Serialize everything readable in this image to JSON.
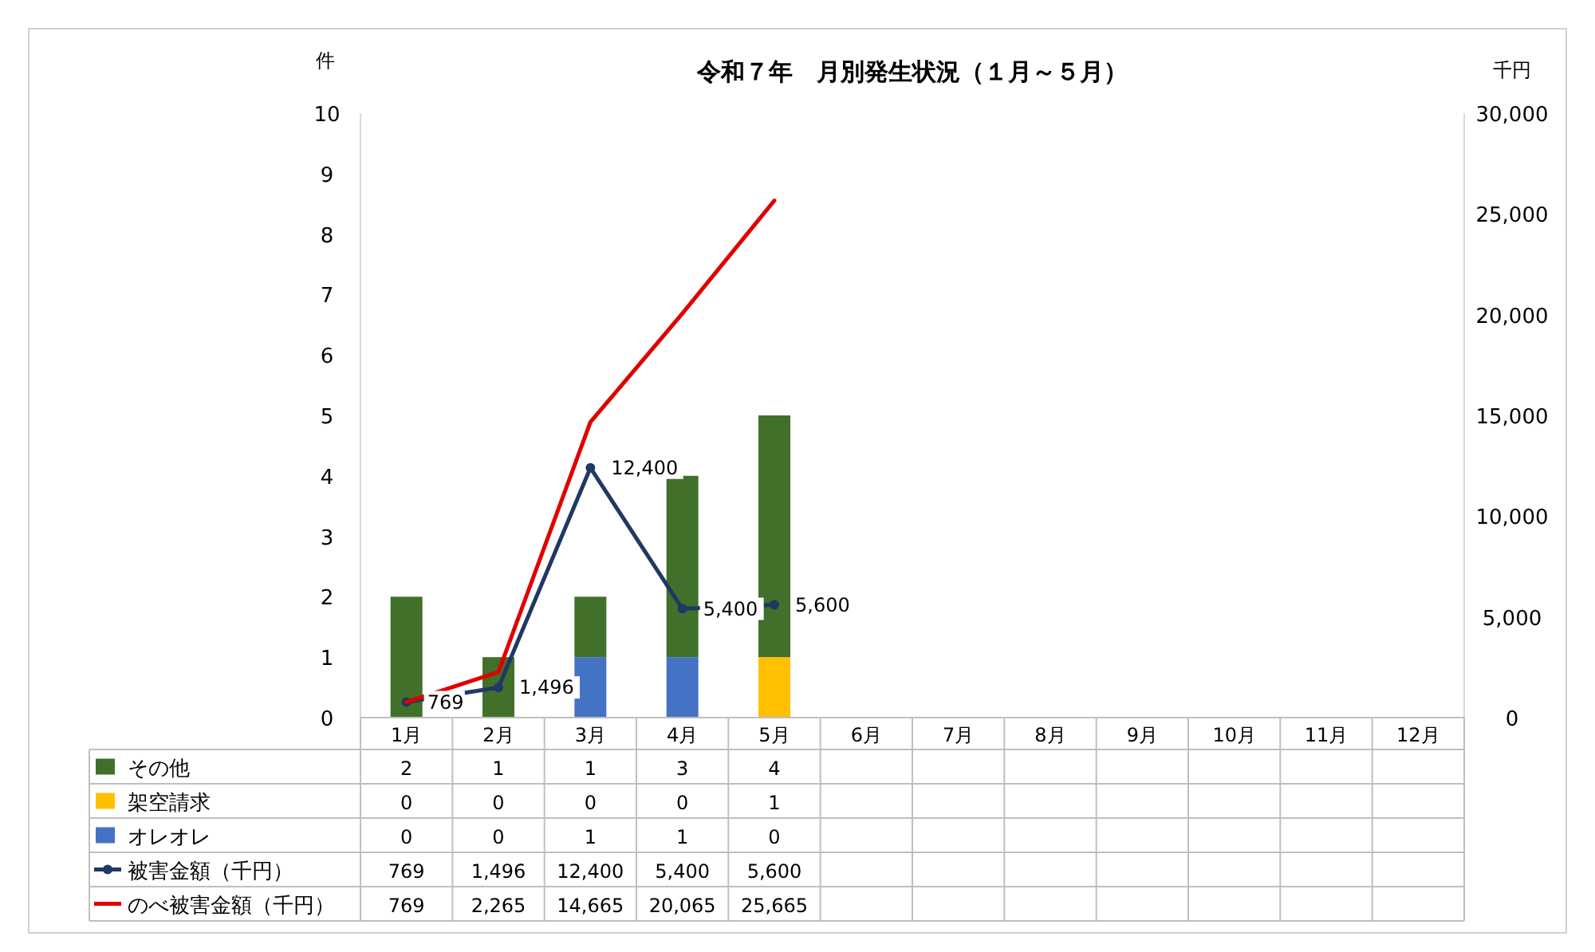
{
  "chart_data": {
    "type": "bar",
    "title": "令和７年　月別発生状況（１月～５月）",
    "ylabel": "件",
    "y2label": "千円",
    "categories": [
      "1月",
      "2月",
      "3月",
      "4月",
      "5月",
      "6月",
      "7月",
      "8月",
      "9月",
      "10月",
      "11月",
      "12月"
    ],
    "stacked": true,
    "legend": "bottom left",
    "grid": false,
    "ylim": [
      0,
      10
    ],
    "yticks": [
      0,
      1,
      2,
      3,
      4,
      5,
      6,
      7,
      8,
      9,
      10
    ],
    "y2lim": [
      0,
      30000
    ],
    "y2ticks": [
      0,
      {
        "value": 5000,
        "label": "5,000"
      },
      {
        "value": 10000,
        "label": "10,000"
      },
      {
        "value": 15000,
        "label": "15,000"
      },
      {
        "value": 20000,
        "label": "20,000"
      },
      {
        "value": 25000,
        "label": "25,000"
      },
      {
        "value": 30000,
        "label": "30,000"
      }
    ],
    "series": [
      {
        "name": "オレオレ",
        "color": "#4472c4",
        "values": [
          0,
          0,
          1,
          1,
          0,
          null,
          null,
          null,
          null,
          null,
          null,
          null
        ],
        "value_labels": [
          "0",
          "0",
          "1",
          "1",
          "0",
          null,
          null,
          null,
          null,
          null,
          null,
          null
        ]
      },
      {
        "name": "架空請求",
        "color": "#ffc000",
        "values": [
          0,
          0,
          0,
          0,
          1,
          null,
          null,
          null,
          null,
          null,
          null,
          null
        ],
        "value_labels": [
          "0",
          "0",
          "0",
          "0",
          "1",
          null,
          null,
          null,
          null,
          null,
          null,
          null
        ]
      },
      {
        "name": "その他",
        "color": "#41702a",
        "values": [
          2,
          1,
          1,
          3,
          4,
          null,
          null,
          null,
          null,
          null,
          null,
          null
        ],
        "value_labels": [
          "2",
          "1",
          "1",
          "3",
          "4",
          null,
          null,
          null,
          null,
          null,
          null,
          null
        ]
      },
      {
        "name": "被害金額（千円）",
        "type": "line",
        "axis": "y2",
        "marker": "circle",
        "color": "#203864",
        "values": [
          769,
          1496,
          12400,
          5400,
          5600,
          null,
          null,
          null,
          null,
          null,
          null,
          null
        ],
        "value_labels": [
          "769",
          "1,496",
          "12,400",
          "5,400",
          "5,600",
          null,
          null,
          null,
          null,
          null,
          null,
          null
        ]
      },
      {
        "name": "のべ被害金額（千円）",
        "type": "line",
        "axis": "y2",
        "marker": "none",
        "color": "#e00000",
        "values": [
          769,
          2265,
          14665,
          20065,
          25665,
          null,
          null,
          null,
          null,
          null,
          null,
          null
        ],
        "value_labels": [
          "769",
          "2,265",
          "14,665",
          "20,065",
          "25,665",
          null,
          null,
          null,
          null,
          null,
          null,
          null
        ]
      }
    ]
  }
}
